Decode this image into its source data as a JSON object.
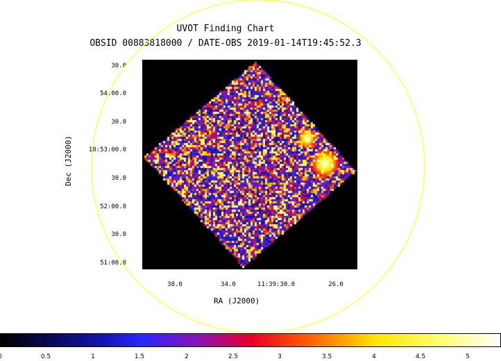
{
  "chart": {
    "title": "UVOT Finding Chart",
    "subtitle": "OBSID 00883818000 / DATE-OBS 2019-01-14T19:45:52.3",
    "xlabel": "RA (J2000)",
    "ylabel": "Dec (J2000)",
    "y_ticks": [
      "30.0",
      "54:00.0",
      "30.0",
      "18:53:00.0",
      "30.0",
      "52:00.0",
      "30.0",
      "51:00.0"
    ],
    "x_ticks": [
      "38.0",
      "34.0",
      "11:39:30.0",
      "26.0"
    ],
    "colorbar_ticks": [
      "0",
      "0.5",
      "1",
      "1.5",
      "2",
      "2.5",
      "3",
      "3.5",
      "4",
      "4.5",
      "5"
    ],
    "colorbar_range": [
      0,
      5.4
    ],
    "colormap": "heat (black-blue-red-yellow-white)",
    "region_circle_color": "#ffff33",
    "frame_color": "#1a1aff"
  }
}
